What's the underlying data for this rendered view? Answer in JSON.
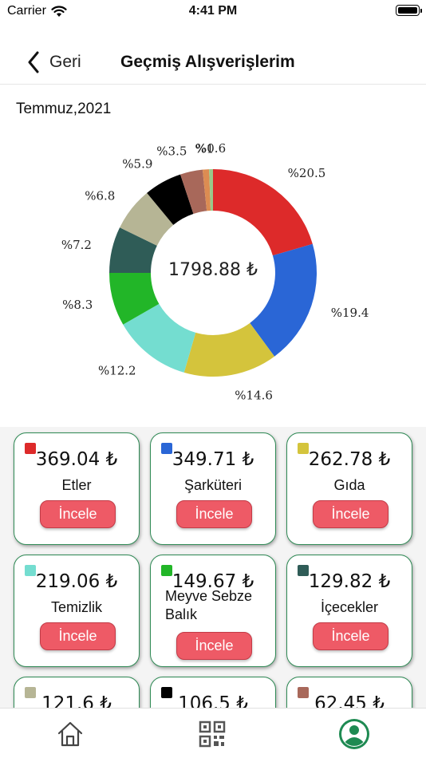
{
  "status_bar": {
    "carrier": "Carrier",
    "time": "4:41 PM"
  },
  "nav": {
    "back_label": "Geri",
    "title": "Geçmiş Alışverişlerim"
  },
  "period": "Temmuz,2021",
  "colors": {
    "accent_border": "#2f8a55",
    "button_red": "#ee5a66",
    "tab_active": "#1e8a52"
  },
  "chart_data": {
    "type": "pie",
    "donut": true,
    "center_label": "1798.88 ₺",
    "labels": [
      "%20.5",
      "%19.4",
      "%14.6",
      "%12.2",
      "%8.3",
      "%7.2",
      "%6.8",
      "%5.9",
      "%3.5",
      "%1",
      "%0.6"
    ],
    "values": [
      20.5,
      19.4,
      14.6,
      12.2,
      8.3,
      7.2,
      6.8,
      5.9,
      3.5,
      1.0,
      0.6
    ],
    "colors": [
      "#dd2a2a",
      "#2a66d6",
      "#d4c43c",
      "#74ddd0",
      "#22b628",
      "#2f5c57",
      "#b6b595",
      "#000000",
      "#a8685a",
      "#dc8c52",
      "#99c98a"
    ]
  },
  "cards": [
    {
      "amount": "369.04 ₺",
      "name": "Etler",
      "color": "#dd2a2a",
      "button": "İncele"
    },
    {
      "amount": "349.71 ₺",
      "name": "Şarküteri",
      "color": "#2a66d6",
      "button": "İncele"
    },
    {
      "amount": "262.78 ₺",
      "name": "Gıda",
      "color": "#d4c43c",
      "button": "İncele"
    },
    {
      "amount": "219.06 ₺",
      "name": "Temizlik",
      "color": "#74ddd0",
      "button": "İncele"
    },
    {
      "amount": "149.67 ₺",
      "name": "Meyve Sebze Balık",
      "color": "#22b628",
      "button": "İncele"
    },
    {
      "amount": "129.82 ₺",
      "name": "İçecekler",
      "color": "#2f5c57",
      "button": "İncele"
    },
    {
      "amount": "121.6 ₺",
      "color": "#b6b595"
    },
    {
      "amount": "106.5 ₺",
      "color": "#000000"
    },
    {
      "amount": "62.45 ₺",
      "color": "#a8685a"
    }
  ],
  "tabs": [
    {
      "icon": "home-icon"
    },
    {
      "icon": "qr-code-icon"
    },
    {
      "icon": "profile-icon",
      "active": true
    }
  ]
}
